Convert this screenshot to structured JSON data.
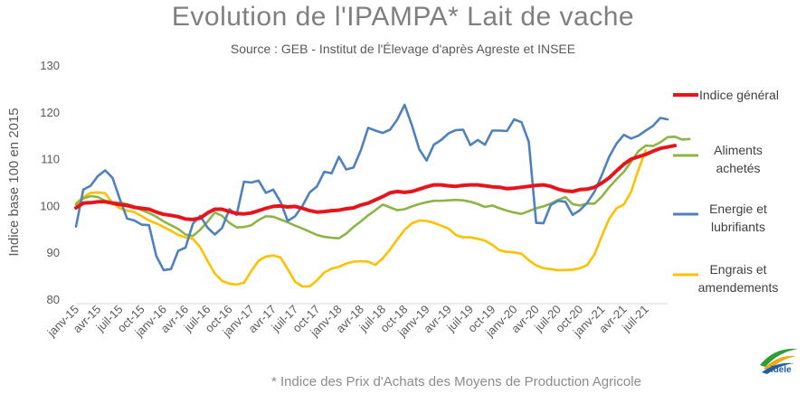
{
  "title": "Evolution de l'IPAMPA* Lait de vache",
  "subtitle": "Source : GEB - Institut de l'Élevage d'après Agreste et INSEE",
  "footnote": "* Indice des Prix d'Achats des Moyens de Production Agricole",
  "logo": {
    "text": "idele",
    "colors": [
      "#2e9d3a",
      "#f0a81c",
      "#1f5fa6"
    ]
  },
  "chart_data": {
    "type": "line",
    "ylabel": "Indice base 100 en 2015",
    "ylim": [
      80,
      130
    ],
    "yticks": [
      80,
      90,
      100,
      110,
      120,
      130
    ],
    "grid": false,
    "legend_position": "right",
    "x_tick_labels": [
      "janv-15",
      "avr-15",
      "juil-15",
      "oct-15",
      "janv-16",
      "avr-16",
      "juil-16",
      "oct-16",
      "janv-17",
      "avr-17",
      "juil-17",
      "oct-17",
      "janv-18",
      "avr-18",
      "juil-18",
      "oct-18",
      "janv-19",
      "avr-19",
      "juil-19",
      "oct-19",
      "janv-20",
      "avr-20",
      "juil-20",
      "oct-20",
      "janv-21",
      "avr-21",
      "juil-21"
    ],
    "x_start": "janv-15",
    "x_frequency": "monthly",
    "series": [
      {
        "name": "Indice général",
        "color": "#e8141b",
        "values": [
          99.5,
          100.5,
          100.6,
          100.8,
          100.8,
          100.5,
          100.2,
          100,
          99.6,
          99.4,
          99.2,
          98.6,
          98.1,
          97.9,
          97.6,
          97.1,
          97.0,
          97.3,
          98.4,
          99.2,
          99.2,
          98.7,
          98.3,
          98.2,
          98.4,
          98.9,
          99.4,
          99.8,
          99.9,
          99.7,
          99.8,
          99.4,
          98.9,
          98.6,
          98.7,
          98.9,
          99.0,
          99.3,
          99.5,
          100.1,
          100.5,
          101.2,
          101.9,
          102.7,
          103.0,
          102.8,
          103.0,
          103.5,
          104.0,
          104.4,
          104.4,
          104.2,
          104.1,
          104.3,
          104.4,
          104.4,
          104.2,
          104.0,
          103.9,
          103.6,
          103.7,
          103.9,
          104.1,
          104.3,
          104.4,
          104.1,
          103.5,
          103.1,
          103.0,
          103.4,
          103.5,
          103.9,
          104.8,
          105.9,
          107.4,
          108.8,
          109.9,
          110.4,
          110.9,
          111.6,
          112.2,
          112.5,
          112.8
        ]
      },
      {
        "name": "Aliments achetés",
        "color": "#8db545",
        "values": [
          100.2,
          101.5,
          102.0,
          101.8,
          101.0,
          100.7,
          100.6,
          100.3,
          99.8,
          99.0,
          98.4,
          97.6,
          96.6,
          95.8,
          95.0,
          93.8,
          93.5,
          94.8,
          96.5,
          98.5,
          97.8,
          96.3,
          95.3,
          95.4,
          95.8,
          96.9,
          97.7,
          97.6,
          97.0,
          96.4,
          95.7,
          95.1,
          94.4,
          93.7,
          93.3,
          93.1,
          93.0,
          94.0,
          95.4,
          96.6,
          97.9,
          99.0,
          100.2,
          99.6,
          99.0,
          99.2,
          99.8,
          100.3,
          100.7,
          101.0,
          101.0,
          101.1,
          101.2,
          101.1,
          100.8,
          100.3,
          99.7,
          100.0,
          99.4,
          98.9,
          98.5,
          98.2,
          98.8,
          99.4,
          99.8,
          100.4,
          101.2,
          101.8,
          100.3,
          100.0,
          100.4,
          100.4,
          101.9,
          103.9,
          105.6,
          107.2,
          109.3,
          111.6,
          112.8,
          112.7,
          113.5,
          114.6,
          114.7,
          114.1,
          114.2
        ]
      },
      {
        "name": "Energie et lubrifiants",
        "color": "#4f81bd",
        "values": [
          95.5,
          103.4,
          104.2,
          106.3,
          107.5,
          105.9,
          101.4,
          97.2,
          96.8,
          95.9,
          95.8,
          89.2,
          86.2,
          86.4,
          90.3,
          91.0,
          96.1,
          97.8,
          95.3,
          93.8,
          95.2,
          99.2,
          98.0,
          105.1,
          104.9,
          105.3,
          102.7,
          103.4,
          100.8,
          96.7,
          97.7,
          99.9,
          102.8,
          104.1,
          107.2,
          106.9,
          110.4,
          107.7,
          108.1,
          111.8,
          116.6,
          116.0,
          115.5,
          116.2,
          118.4,
          121.5,
          117.1,
          112.0,
          109.6,
          113.0,
          114.0,
          115.4,
          116.1,
          116.2,
          112.9,
          114.0,
          113.0,
          116.0,
          116.0,
          115.9,
          118.4,
          117.8,
          113.6,
          96.3,
          96.2,
          100.1,
          101.0,
          100.8,
          98.0,
          99.0,
          100.6,
          103.0,
          106.5,
          110.4,
          113.2,
          115.1,
          114.3,
          114.9,
          116.0,
          117.0,
          118.7,
          118.4
        ]
      },
      {
        "name": "Engrais et amendements",
        "color": "#ffc000",
        "values": [
          100.5,
          101.8,
          102.7,
          102.8,
          102.6,
          100.5,
          99.4,
          98.9,
          98.6,
          97.7,
          96.8,
          96.2,
          95.4,
          94.6,
          93.7,
          93.2,
          92.9,
          91.1,
          88.2,
          85.5,
          83.9,
          83.3,
          83.1,
          83.5,
          86.0,
          88.2,
          89.1,
          89.3,
          88.9,
          86.4,
          83.7,
          82.7,
          82.7,
          84.0,
          85.7,
          86.5,
          86.9,
          87.6,
          88.0,
          88.1,
          88.0,
          87.3,
          88.7,
          90.6,
          92.8,
          94.8,
          96.2,
          96.8,
          96.7,
          96.3,
          95.7,
          95.1,
          93.7,
          93.2,
          93.2,
          92.9,
          92.5,
          91.6,
          90.4,
          90.1,
          90.0,
          89.7,
          88.3,
          87.2,
          86.6,
          86.4,
          86.2,
          86.2,
          86.3,
          86.6,
          87.3,
          89.6,
          93.5,
          97.1,
          99.4,
          100.2,
          102.9,
          107.6,
          111.8
        ]
      }
    ],
    "legend": [
      {
        "lines": [
          "Indice général"
        ],
        "color": "#e8141b"
      },
      {
        "lines": [
          "Aliments",
          "achetés"
        ],
        "color": "#8db545"
      },
      {
        "lines": [
          "Energie et",
          "lubrifiants"
        ],
        "color": "#4f81bd"
      },
      {
        "lines": [
          "Engrais et",
          "amendements"
        ],
        "color": "#ffc000"
      }
    ]
  }
}
